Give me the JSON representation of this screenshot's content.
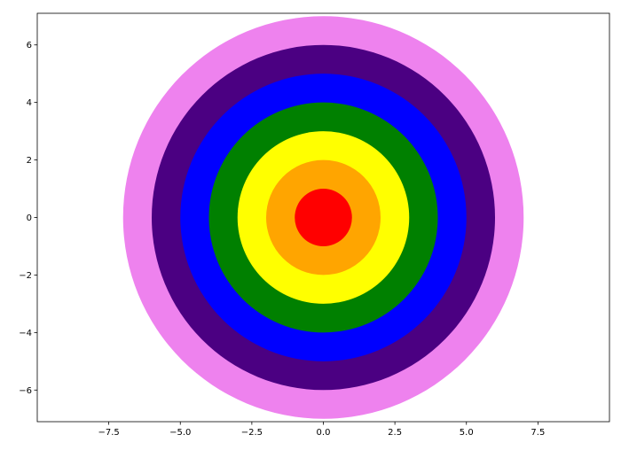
{
  "chart_data": {
    "type": "concentric-circles",
    "title": "",
    "xlabel": "",
    "ylabel": "",
    "xlim": [
      -10,
      10
    ],
    "ylim": [
      -7.1,
      7.1
    ],
    "grid": false,
    "x_ticks": [
      -7.5,
      -5.0,
      -2.5,
      0.0,
      2.5,
      5.0,
      7.5
    ],
    "x_tick_labels": [
      "−7.5",
      "−5.0",
      "−2.5",
      "0.0",
      "2.5",
      "5.0",
      "7.5"
    ],
    "y_ticks": [
      -6,
      -4,
      -2,
      0,
      2,
      4,
      6
    ],
    "y_tick_labels": [
      "−6",
      "−4",
      "−2",
      "0",
      "2",
      "4",
      "6"
    ],
    "circles": [
      {
        "center": [
          0,
          0
        ],
        "radius": 7,
        "color": "#ee82ee"
      },
      {
        "center": [
          0,
          0
        ],
        "radius": 6,
        "color": "#4b0082"
      },
      {
        "center": [
          0,
          0
        ],
        "radius": 5,
        "color": "#0000ff"
      },
      {
        "center": [
          0,
          0
        ],
        "radius": 4,
        "color": "#008000"
      },
      {
        "center": [
          0,
          0
        ],
        "radius": 3,
        "color": "#ffff00"
      },
      {
        "center": [
          0,
          0
        ],
        "radius": 2,
        "color": "#ffa500"
      },
      {
        "center": [
          0,
          0
        ],
        "radius": 1,
        "color": "#ff0000"
      }
    ]
  }
}
